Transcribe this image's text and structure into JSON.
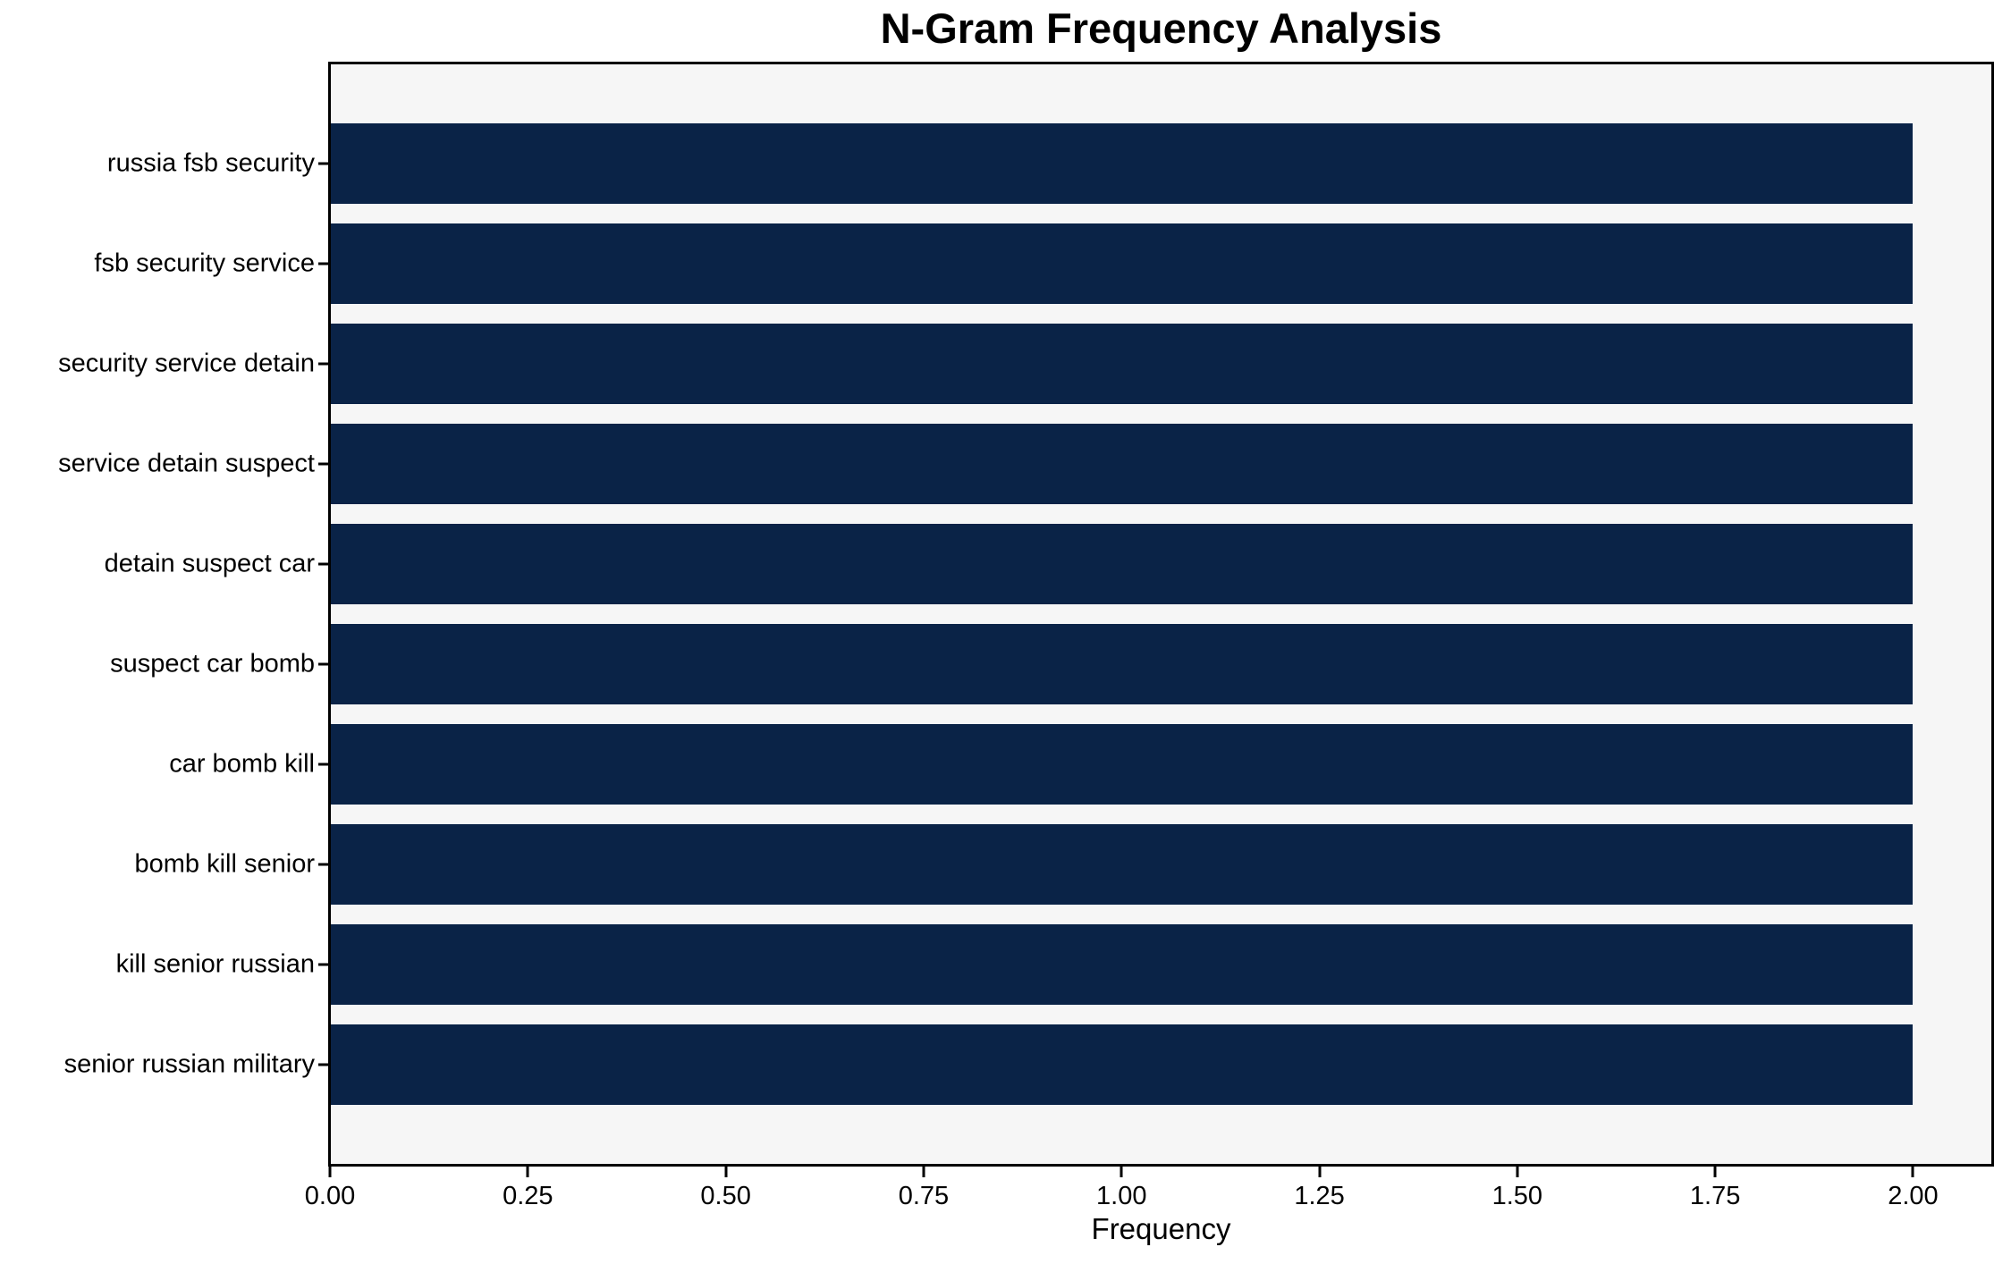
{
  "chart_data": {
    "type": "bar",
    "orientation": "horizontal",
    "title": "N-Gram Frequency Analysis",
    "xlabel": "Frequency",
    "ylabel": "",
    "categories": [
      "russia fsb security",
      "fsb security service",
      "security service detain",
      "service detain suspect",
      "detain suspect car",
      "suspect car bomb",
      "car bomb kill",
      "bomb kill senior",
      "kill senior russian",
      "senior russian military"
    ],
    "values": [
      2,
      2,
      2,
      2,
      2,
      2,
      2,
      2,
      2,
      2
    ],
    "xlim": [
      0,
      2.1
    ],
    "xticks": [
      0,
      0.25,
      0.5,
      0.75,
      1.0,
      1.25,
      1.5,
      1.75,
      2.0
    ],
    "xtick_labels": [
      "0.00",
      "0.25",
      "0.50",
      "0.75",
      "1.00",
      "1.25",
      "1.50",
      "1.75",
      "2.00"
    ],
    "grid": false,
    "legend": "none",
    "colors": {
      "bar": "#0a2347",
      "plot_background": "#f6f6f6",
      "figure_background": "#ffffff",
      "spine": "#000000",
      "text": "#000000"
    }
  }
}
